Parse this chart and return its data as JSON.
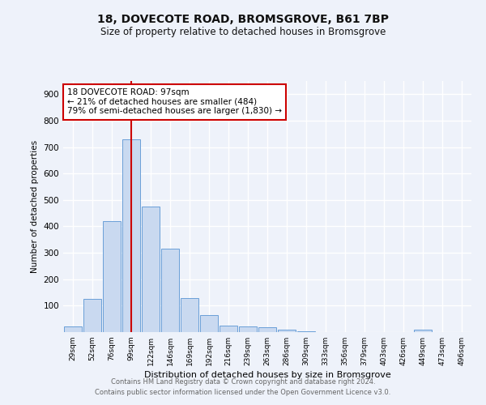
{
  "title": "18, DOVECOTE ROAD, BROMSGROVE, B61 7BP",
  "subtitle": "Size of property relative to detached houses in Bromsgrove",
  "xlabel": "Distribution of detached houses by size in Bromsgrove",
  "ylabel": "Number of detached properties",
  "bar_labels": [
    "29sqm",
    "52sqm",
    "76sqm",
    "99sqm",
    "122sqm",
    "146sqm",
    "169sqm",
    "192sqm",
    "216sqm",
    "239sqm",
    "263sqm",
    "286sqm",
    "309sqm",
    "333sqm",
    "356sqm",
    "379sqm",
    "403sqm",
    "426sqm",
    "449sqm",
    "473sqm",
    "496sqm"
  ],
  "bar_values": [
    22,
    125,
    420,
    730,
    475,
    315,
    130,
    65,
    25,
    22,
    18,
    8,
    2,
    0,
    0,
    0,
    0,
    0,
    8,
    0,
    0
  ],
  "bar_color": "#c9d9f0",
  "bar_edge_color": "#6a9fd8",
  "vline_x": 3.5,
  "vline_color": "#cc0000",
  "annotation_text": "18 DOVECOTE ROAD: 97sqm\n← 21% of detached houses are smaller (484)\n79% of semi-detached houses are larger (1,830) →",
  "annotation_box_color": "#ffffff",
  "annotation_box_edge": "#cc0000",
  "ylim": [
    0,
    950
  ],
  "yticks": [
    0,
    100,
    200,
    300,
    400,
    500,
    600,
    700,
    800,
    900
  ],
  "footer_line1": "Contains HM Land Registry data © Crown copyright and database right 2024.",
  "footer_line2": "Contains public sector information licensed under the Open Government Licence v3.0.",
  "bg_color": "#eef2fa",
  "plot_bg_color": "#eef2fa",
  "grid_color": "#ffffff",
  "title_fontsize": 10,
  "subtitle_fontsize": 8.5
}
